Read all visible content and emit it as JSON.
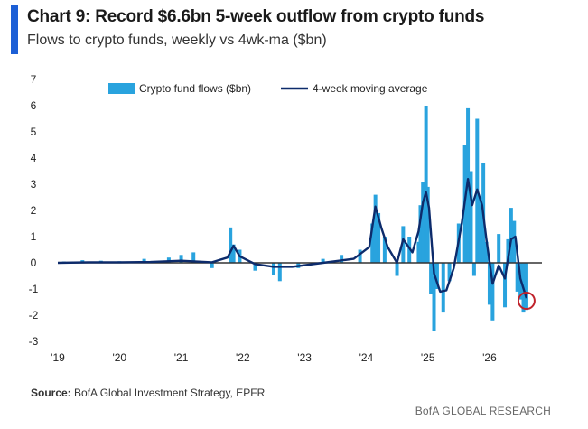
{
  "header": {
    "title": "Chart 9: Record $6.6bn 5-week outflow from crypto funds",
    "subtitle": "Flows to crypto funds, weekly vs 4wk-ma ($bn)",
    "accent_color": "#1c5fd6"
  },
  "chart_data": {
    "type": "bar",
    "title": "Chart 9: Record $6.6bn 5-week outflow from crypto funds",
    "subtitle": "Flows to crypto funds, weekly vs 4wk-ma ($bn)",
    "ylim": [
      -3,
      7
    ],
    "yticks": [
      "7",
      "6",
      "5",
      "4",
      "3",
      "2",
      "1",
      "0",
      "-1",
      "-2",
      "-3"
    ],
    "yticks_values": [
      7,
      6,
      5,
      4,
      3,
      2,
      1,
      0,
      -1,
      -2,
      -3
    ],
    "xtick_labels": [
      "'19",
      "'20",
      "'21",
      "'22",
      "'23",
      "'24",
      "'25",
      "'26"
    ],
    "xtick_years": [
      2019,
      2020,
      2021,
      2022,
      2023,
      2024,
      2025,
      2026
    ],
    "xlim_years": [
      2019,
      2026.85
    ],
    "grid": false,
    "legend_position": "top",
    "series": [
      {
        "name": "Crypto fund flows ($bn)",
        "kind": "bar",
        "color": "#29a3de",
        "points": [
          [
            2019.1,
            0.05
          ],
          [
            2019.4,
            0.1
          ],
          [
            2019.7,
            0.08
          ],
          [
            2020.0,
            0.06
          ],
          [
            2020.4,
            0.15
          ],
          [
            2020.8,
            0.2
          ],
          [
            2021.0,
            0.3
          ],
          [
            2021.2,
            0.4
          ],
          [
            2021.5,
            -0.2
          ],
          [
            2021.8,
            1.35
          ],
          [
            2021.85,
            0.7
          ],
          [
            2021.95,
            0.5
          ],
          [
            2022.2,
            -0.3
          ],
          [
            2022.5,
            -0.45
          ],
          [
            2022.6,
            -0.7
          ],
          [
            2022.9,
            -0.2
          ],
          [
            2023.3,
            0.15
          ],
          [
            2023.6,
            0.3
          ],
          [
            2023.9,
            0.5
          ],
          [
            2024.1,
            1.5
          ],
          [
            2024.15,
            2.6
          ],
          [
            2024.2,
            1.9
          ],
          [
            2024.3,
            1.0
          ],
          [
            2024.5,
            -0.5
          ],
          [
            2024.6,
            1.4
          ],
          [
            2024.7,
            1.0
          ],
          [
            2024.85,
            0.8
          ],
          [
            2024.88,
            2.2
          ],
          [
            2024.92,
            3.1
          ],
          [
            2024.97,
            6.0
          ],
          [
            2025.0,
            2.9
          ],
          [
            2025.05,
            -1.2
          ],
          [
            2025.1,
            -2.6
          ],
          [
            2025.15,
            -1.0
          ],
          [
            2025.25,
            -1.9
          ],
          [
            2025.35,
            -0.7
          ],
          [
            2025.5,
            1.5
          ],
          [
            2025.6,
            4.5
          ],
          [
            2025.65,
            5.9
          ],
          [
            2025.7,
            3.5
          ],
          [
            2025.75,
            -0.5
          ],
          [
            2025.8,
            5.5
          ],
          [
            2025.85,
            2.5
          ],
          [
            2025.9,
            3.8
          ],
          [
            2025.95,
            0.8
          ],
          [
            2026.0,
            -1.6
          ],
          [
            2026.05,
            -2.2
          ],
          [
            2026.15,
            1.1
          ],
          [
            2026.25,
            -1.7
          ],
          [
            2026.3,
            0.9
          ],
          [
            2026.35,
            2.1
          ],
          [
            2026.4,
            1.6
          ],
          [
            2026.45,
            -1.1
          ],
          [
            2026.5,
            -1.4
          ],
          [
            2026.55,
            -1.9
          ],
          [
            2026.6,
            -1.8
          ]
        ]
      },
      {
        "name": "4-week moving average",
        "kind": "line",
        "color": "#0d2b6b",
        "points": [
          [
            2019.0,
            0.0
          ],
          [
            2019.5,
            0.02
          ],
          [
            2020.0,
            0.02
          ],
          [
            2020.5,
            0.03
          ],
          [
            2021.0,
            0.08
          ],
          [
            2021.5,
            0.02
          ],
          [
            2021.75,
            0.2
          ],
          [
            2021.85,
            0.65
          ],
          [
            2021.95,
            0.25
          ],
          [
            2022.2,
            -0.05
          ],
          [
            2022.5,
            -0.15
          ],
          [
            2022.8,
            -0.15
          ],
          [
            2023.3,
            0.0
          ],
          [
            2023.8,
            0.15
          ],
          [
            2024.05,
            0.6
          ],
          [
            2024.15,
            2.15
          ],
          [
            2024.25,
            1.3
          ],
          [
            2024.35,
            0.6
          ],
          [
            2024.5,
            0.0
          ],
          [
            2024.6,
            0.9
          ],
          [
            2024.75,
            0.4
          ],
          [
            2024.85,
            1.2
          ],
          [
            2024.92,
            2.3
          ],
          [
            2024.97,
            2.7
          ],
          [
            2025.02,
            2.1
          ],
          [
            2025.1,
            -0.4
          ],
          [
            2025.2,
            -1.1
          ],
          [
            2025.3,
            -1.05
          ],
          [
            2025.42,
            -0.2
          ],
          [
            2025.55,
            1.5
          ],
          [
            2025.65,
            3.2
          ],
          [
            2025.72,
            2.2
          ],
          [
            2025.8,
            2.8
          ],
          [
            2025.88,
            2.2
          ],
          [
            2025.95,
            0.9
          ],
          [
            2026.05,
            -0.8
          ],
          [
            2026.15,
            -0.1
          ],
          [
            2026.25,
            -0.6
          ],
          [
            2026.35,
            0.9
          ],
          [
            2026.42,
            1.0
          ],
          [
            2026.5,
            -0.6
          ],
          [
            2026.6,
            -1.35
          ]
        ]
      }
    ],
    "annotation": {
      "marker": "circle",
      "color": "#c0232c",
      "x": 2026.6,
      "y": -1.45
    }
  },
  "footer": {
    "source_label": "Source:",
    "source_text": " BofA Global Investment Strategy, EPFR",
    "brand": "BofA GLOBAL RESEARCH"
  }
}
